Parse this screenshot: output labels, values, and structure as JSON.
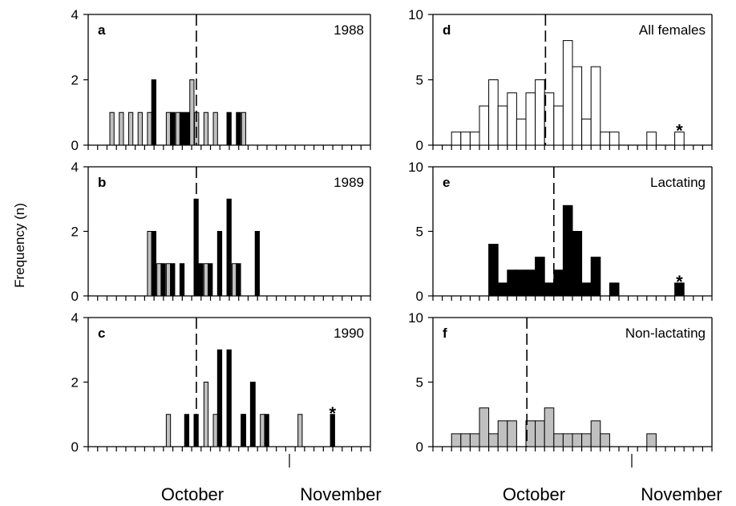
{
  "figure": {
    "ylabel": "Frequency (n)",
    "x_months": [
      "October",
      "November"
    ],
    "colors": {
      "lactating": "#000000",
      "non_lactating": "#c0c0c0",
      "all_females": "#ffffff"
    }
  },
  "chart_data": [
    {
      "id": "a",
      "letter": "a",
      "tag": "1988",
      "type": "bar",
      "column": "left",
      "ylim": [
        0,
        4
      ],
      "yticks": [
        "0",
        "2",
        "4"
      ],
      "bin_width": 1,
      "dashed_line_x": 11.5,
      "series": [
        {
          "name": "",
          "color": "#c0c0c0",
          "x": [
            2.3,
            3.3,
            4.3,
            5.3,
            6.3,
            8.3,
            9.3,
            11.3,
            12.3,
            13.3,
            16.3
          ],
          "values": [
            1,
            1,
            1,
            1,
            1,
            1,
            1,
            1,
            1,
            1,
            1
          ]
        },
        {
          "name": "",
          "color": "#000000",
          "x": [
            6.75,
            8.75,
            9.75,
            10.25,
            10.75,
            14.75,
            15.75
          ],
          "values": [
            2,
            1,
            1,
            1,
            1,
            1,
            1
          ]
        },
        {
          "name": "",
          "color": "#c0c0c0",
          "x": [
            10.8
          ],
          "values": [
            2
          ]
        }
      ],
      "annotations": []
    },
    {
      "id": "b",
      "letter": "b",
      "tag": "1989",
      "type": "bar",
      "column": "left",
      "ylim": [
        0,
        4
      ],
      "yticks": [
        "0",
        "2",
        "4"
      ],
      "bin_width": 1,
      "dashed_line_x": 11.5,
      "series": [
        {
          "name": "",
          "color": "#c0c0c0",
          "x": [
            6.3,
            7.3,
            8.3,
            12.3,
            15.3
          ],
          "values": [
            2,
            1,
            1,
            1,
            1
          ]
        },
        {
          "name": "",
          "color": "#000000",
          "x": [
            6.75,
            7.75,
            8.75,
            9.75,
            11.25,
            12.75,
            13.75,
            14.75,
            15.75,
            17.75
          ],
          "values": [
            2,
            1,
            1,
            1,
            3,
            1,
            2,
            3,
            1,
            2
          ]
        },
        {
          "name": "",
          "color": "#000000",
          "x": [
            11.75
          ],
          "values": [
            1
          ]
        }
      ],
      "annotations": []
    },
    {
      "id": "c",
      "letter": "c",
      "tag": "1990",
      "type": "bar",
      "column": "left",
      "ylim": [
        0,
        4
      ],
      "yticks": [
        "0",
        "2",
        "4"
      ],
      "bin_width": 1,
      "dashed_line_x": 11.5,
      "series": [
        {
          "name": "",
          "color": "#c0c0c0",
          "x": [
            8.3,
            12.3,
            13.3,
            16.3,
            17.3,
            18.3,
            22.3
          ],
          "values": [
            1,
            2,
            1,
            1,
            2,
            1,
            1
          ]
        },
        {
          "name": "",
          "color": "#000000",
          "x": [
            10.25,
            11.25,
            13.75,
            14.75,
            16.25,
            17.25,
            18.75,
            25.75
          ],
          "values": [
            1,
            1,
            3,
            3,
            1,
            2,
            1,
            1
          ]
        }
      ],
      "annotations": [
        {
          "x": 25.75,
          "y": 1,
          "text": "*"
        }
      ]
    },
    {
      "id": "d",
      "letter": "d",
      "tag": "All females",
      "type": "bar",
      "column": "right",
      "ylim": [
        0,
        10
      ],
      "yticks": [
        "0",
        "5",
        "10"
      ],
      "bin_width": 1,
      "dashed_line_x": 12.1,
      "series": [
        {
          "name": "",
          "color": "#ffffff",
          "x": [
            2,
            3,
            4,
            5,
            6,
            7,
            8,
            9,
            10,
            11,
            12,
            13,
            14,
            15,
            16,
            17,
            18,
            19,
            20,
            23,
            26
          ],
          "values": [
            1,
            1,
            1,
            3,
            5,
            3,
            4,
            2,
            4,
            5,
            4,
            3,
            8,
            6,
            2,
            6,
            1,
            1,
            0,
            1,
            1
          ]
        }
      ],
      "annotations": [
        {
          "x": 26,
          "y": 1,
          "text": "*"
        }
      ]
    },
    {
      "id": "e",
      "letter": "e",
      "tag": "Lactating",
      "type": "bar",
      "column": "right",
      "ylim": [
        0,
        10
      ],
      "yticks": [
        "0",
        "5",
        "10"
      ],
      "bin_width": 1,
      "dashed_line_x": 13.0,
      "series": [
        {
          "name": "",
          "color": "#000000",
          "x": [
            6,
            7,
            8,
            9,
            10,
            11,
            12,
            13,
            14,
            15,
            16,
            17,
            18,
            19,
            20,
            26
          ],
          "values": [
            4,
            1,
            2,
            2,
            2,
            3,
            1,
            2,
            7,
            5,
            1,
            3,
            0,
            1,
            0,
            1
          ]
        }
      ],
      "annotations": [
        {
          "x": 26,
          "y": 1,
          "text": "*"
        }
      ]
    },
    {
      "id": "f",
      "letter": "f",
      "tag": "Non-lactating",
      "type": "bar",
      "column": "right",
      "ylim": [
        0,
        10
      ],
      "yticks": [
        "0",
        "5",
        "10"
      ],
      "bin_width": 1,
      "dashed_line_x": 10.1,
      "series": [
        {
          "name": "",
          "color": "#c0c0c0",
          "x": [
            2,
            3,
            4,
            5,
            6,
            7,
            8,
            9,
            10,
            11,
            12,
            13,
            14,
            15,
            16,
            17,
            18,
            23
          ],
          "values": [
            1,
            1,
            1,
            3,
            1,
            2,
            2,
            0,
            2,
            2,
            3,
            1,
            1,
            1,
            1,
            2,
            1,
            1
          ]
        }
      ],
      "annotations": []
    }
  ]
}
